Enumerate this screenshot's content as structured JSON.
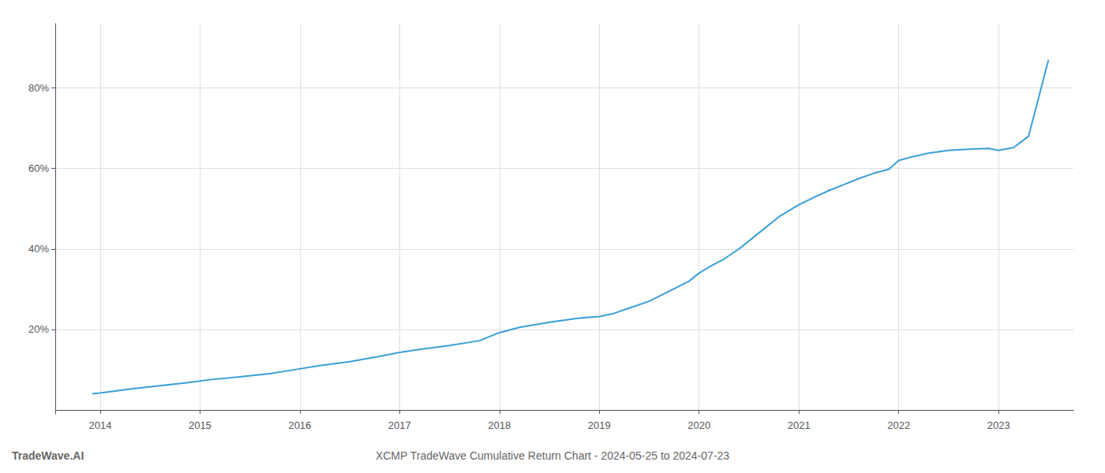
{
  "chart_data": {
    "type": "line",
    "title": "XCMP TradeWave Cumulative Return Chart - 2024-05-25 to 2024-07-23",
    "annotations": [
      "TradeWave.AI"
    ],
    "color": "#3a9fd8",
    "x": [
      2013.92,
      2014.0,
      2014.15,
      2014.35,
      2014.6,
      2014.85,
      2015.1,
      2015.4,
      2015.7,
      2015.95,
      2016.2,
      2016.5,
      2016.8,
      2017.0,
      2017.2,
      2017.5,
      2017.8,
      2018.0,
      2018.2,
      2018.5,
      2018.8,
      2019.0,
      2019.15,
      2019.3,
      2019.5,
      2019.7,
      2019.9,
      2020.0,
      2020.1,
      2020.25,
      2020.4,
      2020.6,
      2020.8,
      2021.0,
      2021.15,
      2021.3,
      2021.45,
      2021.6,
      2021.75,
      2021.9,
      2022.0,
      2022.15,
      2022.3,
      2022.5,
      2022.7,
      2022.9,
      2023.0,
      2023.15,
      2023.3,
      2023.5
    ],
    "values": [
      0.04,
      0.042,
      0.047,
      0.053,
      0.06,
      0.067,
      0.075,
      0.082,
      0.09,
      0.1,
      0.11,
      0.12,
      0.133,
      0.143,
      0.15,
      0.16,
      0.172,
      0.192,
      0.205,
      0.218,
      0.228,
      0.232,
      0.24,
      0.253,
      0.27,
      0.295,
      0.32,
      0.34,
      0.355,
      0.375,
      0.4,
      0.44,
      0.48,
      0.51,
      0.528,
      0.545,
      0.56,
      0.575,
      0.588,
      0.598,
      0.62,
      0.63,
      0.638,
      0.645,
      0.648,
      0.65,
      0.645,
      0.652,
      0.68,
      0.87
    ],
    "xlim": [
      2013.55,
      2023.75
    ],
    "xticks": [
      2014,
      2015,
      2016,
      2017,
      2018,
      2019,
      2020,
      2021,
      2022,
      2023
    ],
    "ylim": [
      -0.01,
      0.96
    ],
    "yticks": [
      {
        "value": 0.2,
        "label": "20%"
      },
      {
        "value": 0.4,
        "label": "40%"
      },
      {
        "value": 0.6,
        "label": "60%"
      },
      {
        "value": 0.8,
        "label": "80%"
      }
    ],
    "grid": true
  }
}
